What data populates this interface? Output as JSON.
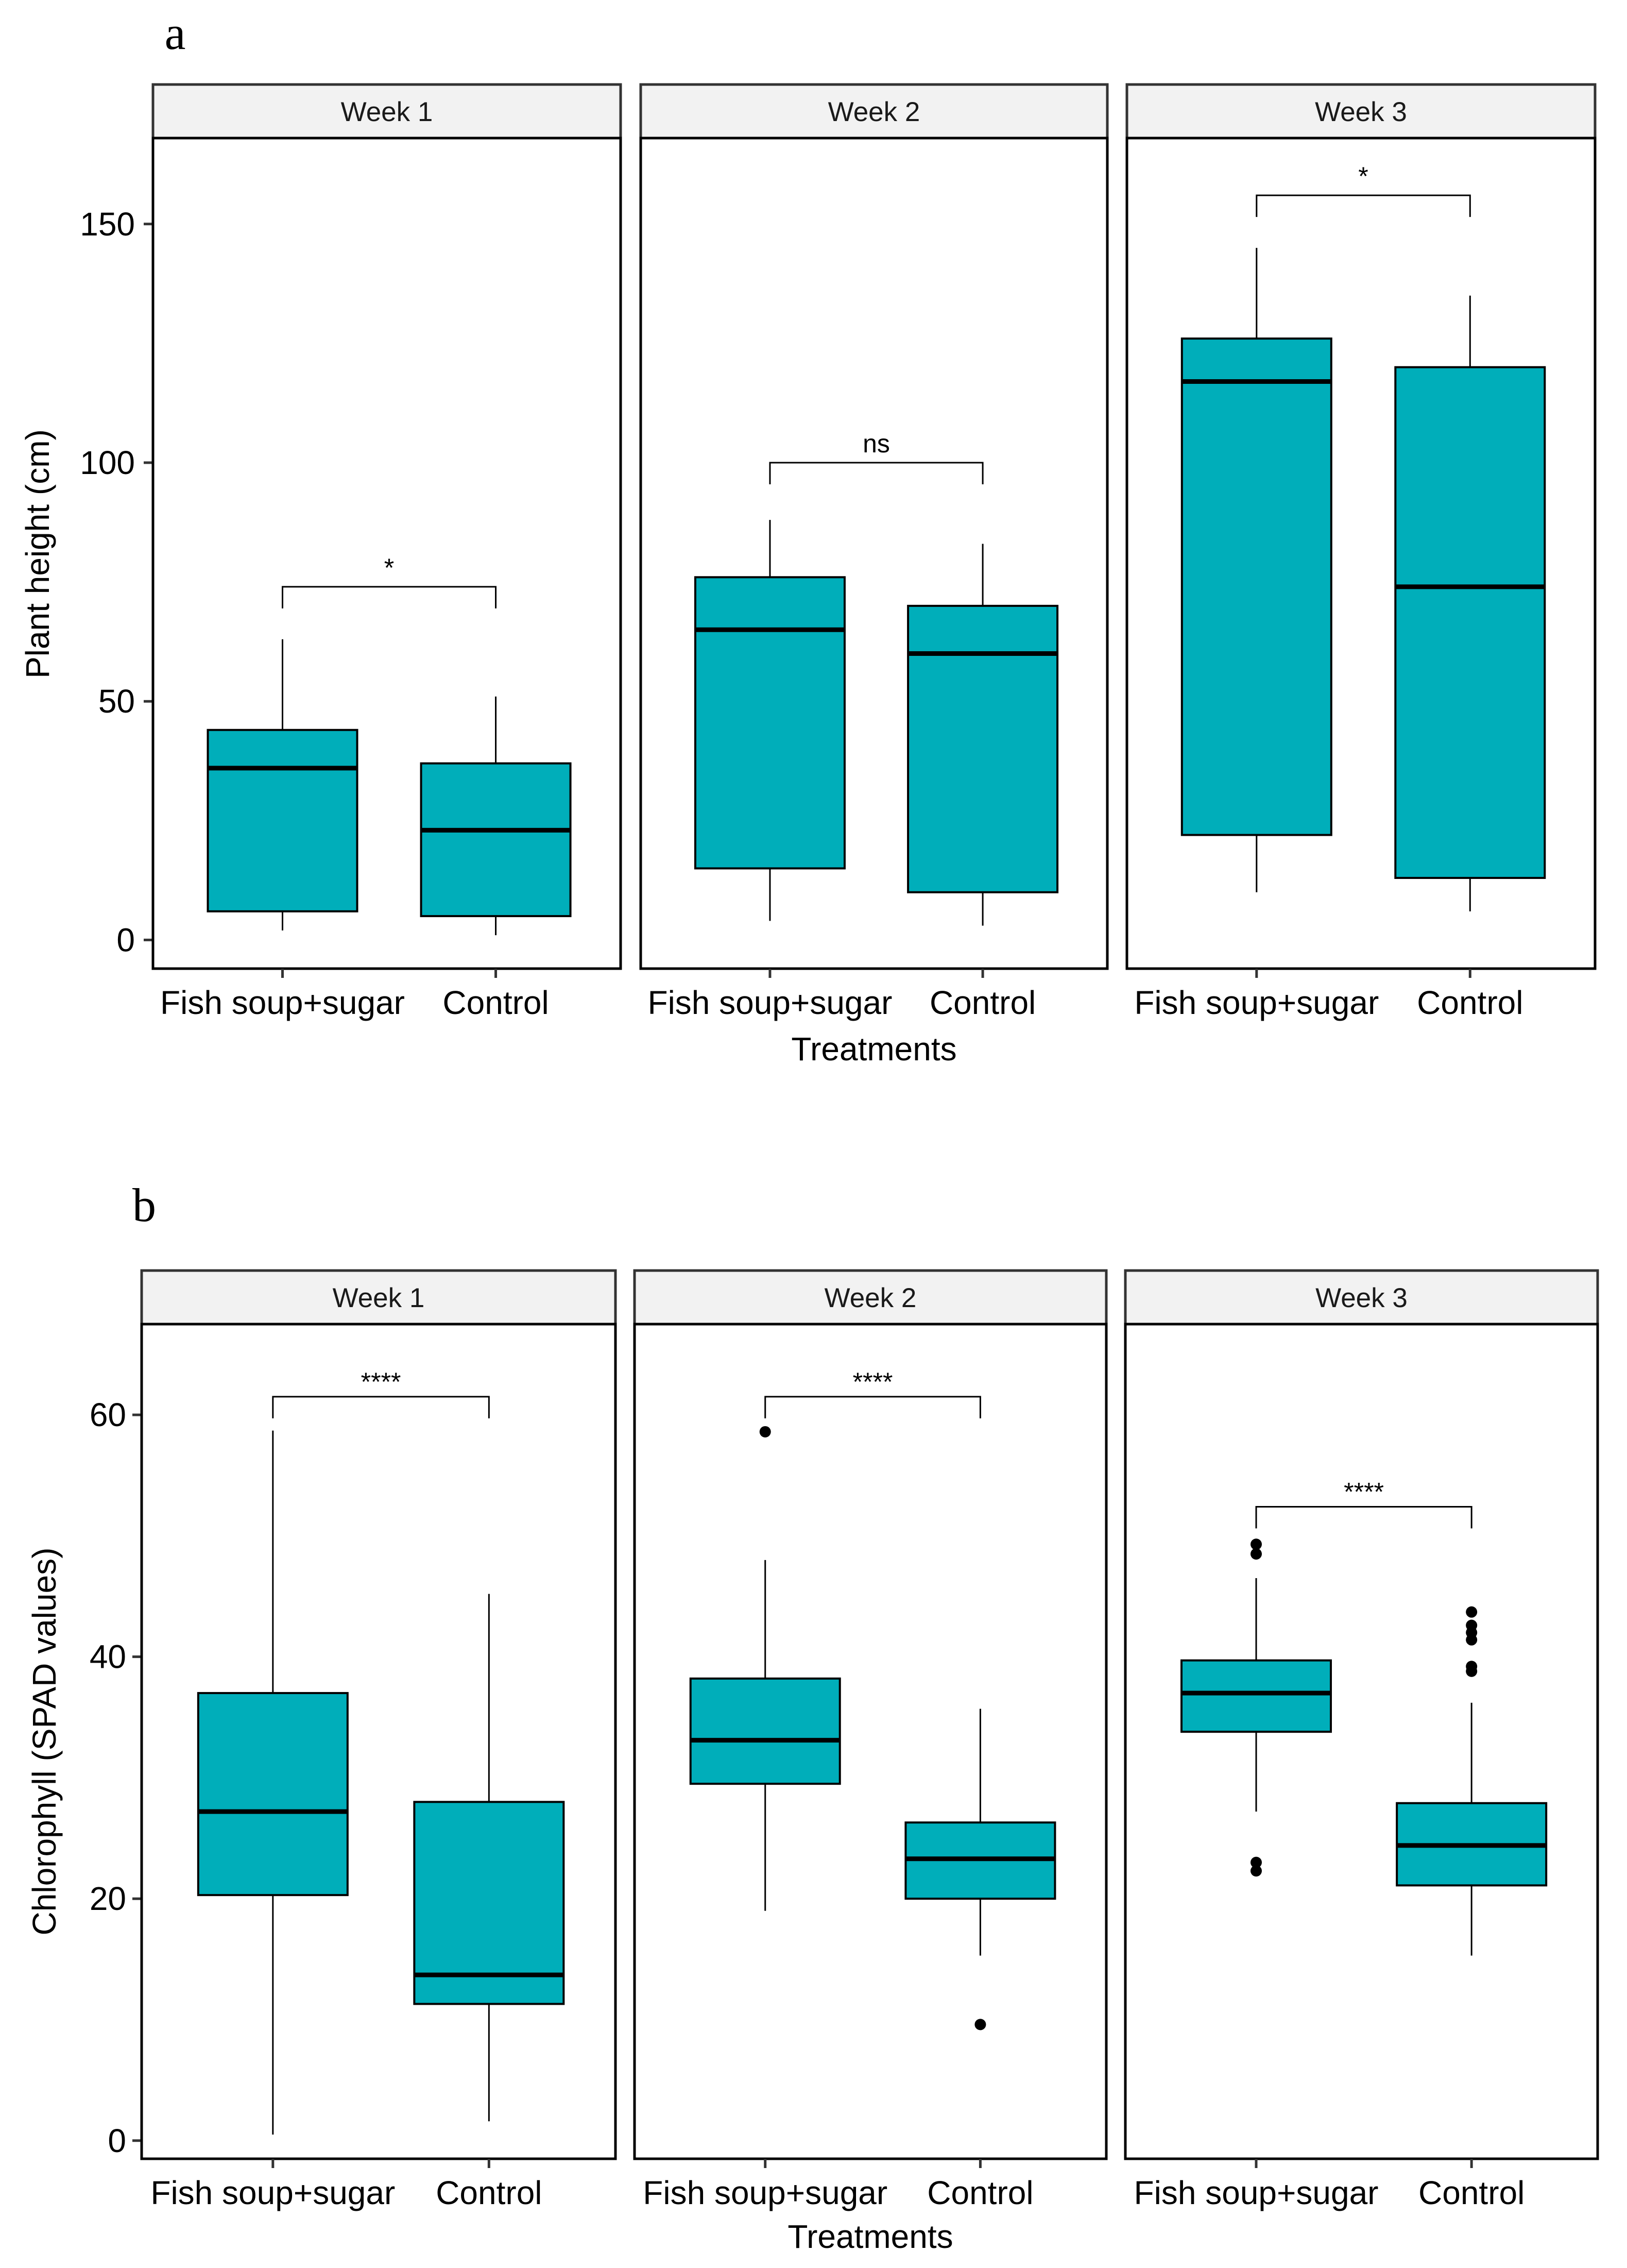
{
  "chart_data": [
    {
      "type": "box",
      "panel_label": "a",
      "ylabel": "Plant height (cm)",
      "xlabel": "Treatments",
      "ylim": [
        -6,
        168
      ],
      "yticks": [
        0,
        50,
        100,
        150
      ],
      "fill_color": "#00AEBA",
      "categories": [
        "Fish soup+sugar",
        "Control"
      ],
      "facets": [
        {
          "title": "Week 1",
          "significance": "*",
          "bracket_y": 74,
          "boxes": [
            {
              "name": "Fish soup+sugar",
              "min": 2,
              "q1": 6,
              "median": 36,
              "q3": 44,
              "max": 63,
              "outliers": []
            },
            {
              "name": "Control",
              "min": 1,
              "q1": 5,
              "median": 23,
              "q3": 37,
              "max": 51,
              "outliers": []
            }
          ]
        },
        {
          "title": "Week 2",
          "significance": "ns",
          "bracket_y": 100,
          "boxes": [
            {
              "name": "Fish soup+sugar",
              "min": 4,
              "q1": 15,
              "median": 65,
              "q3": 76,
              "max": 88,
              "outliers": []
            },
            {
              "name": "Control",
              "min": 3,
              "q1": 10,
              "median": 60,
              "q3": 70,
              "max": 83,
              "outliers": []
            }
          ]
        },
        {
          "title": "Week 3",
          "significance": "*",
          "bracket_y": 156,
          "boxes": [
            {
              "name": "Fish soup+sugar",
              "min": 10,
              "q1": 22,
              "median": 117,
              "q3": 126,
              "max": 145,
              "outliers": []
            },
            {
              "name": "Control",
              "min": 6,
              "q1": 13,
              "median": 74,
              "q3": 120,
              "max": 135,
              "outliers": []
            }
          ]
        }
      ]
    },
    {
      "type": "box",
      "panel_label": "b",
      "ylabel": "Chlorophyll (SPAD values)",
      "xlabel": "Treatments",
      "ylim": [
        -1.5,
        67.5
      ],
      "yticks": [
        0,
        20,
        40,
        60
      ],
      "fill_color": "#00AEBA",
      "categories": [
        "Fish soup+sugar",
        "Control"
      ],
      "facets": [
        {
          "title": "Week 1",
          "significance": "****",
          "bracket_y": 61.5,
          "boxes": [
            {
              "name": "Fish soup+sugar",
              "min": 0.5,
              "q1": 20.3,
              "median": 27.2,
              "q3": 37.0,
              "max": 58.7,
              "outliers": []
            },
            {
              "name": "Control",
              "min": 1.6,
              "q1": 11.3,
              "median": 13.7,
              "q3": 28.0,
              "max": 45.2,
              "outliers": []
            }
          ]
        },
        {
          "title": "Week 2",
          "significance": "****",
          "bracket_y": 61.5,
          "boxes": [
            {
              "name": "Fish soup+sugar",
              "min": 19.0,
              "q1": 29.5,
              "median": 33.1,
              "q3": 38.2,
              "max": 48.0,
              "outliers": [
                58.6
              ]
            },
            {
              "name": "Control",
              "min": 15.3,
              "q1": 20.0,
              "median": 23.3,
              "q3": 26.3,
              "max": 35.7,
              "outliers": [
                9.6
              ]
            }
          ]
        },
        {
          "title": "Week 3",
          "significance": "****",
          "bracket_y": 52.4,
          "boxes": [
            {
              "name": "Fish soup+sugar",
              "min": 27.2,
              "q1": 33.8,
              "median": 37.0,
              "q3": 39.7,
              "max": 46.5,
              "outliers": [
                49.3,
                48.5,
                23.0,
                22.3
              ]
            },
            {
              "name": "Control",
              "min": 15.3,
              "q1": 21.1,
              "median": 24.4,
              "q3": 27.9,
              "max": 36.2,
              "outliers": [
                43.7,
                42.6,
                42.0,
                41.4,
                39.2,
                38.8
              ]
            }
          ]
        }
      ]
    }
  ]
}
